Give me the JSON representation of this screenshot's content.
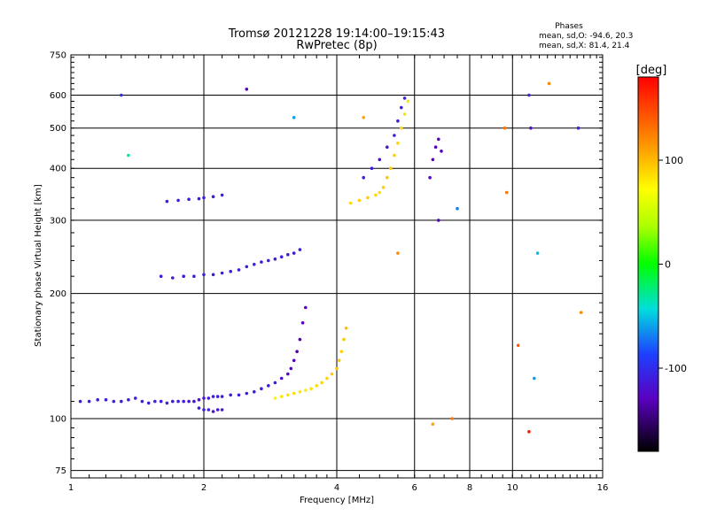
{
  "chart_data": {
    "type": "scatter",
    "title": "Tromsø 20121228 19:14:00–19:15:43",
    "subtitle": "RwPretec (8p)",
    "stats": {
      "heading": "Phases",
      "line1": "mean, sd,O: -94.6, 20.3",
      "line2": "mean, sd,X:  81.4, 21.4"
    },
    "xlabel": "Frequency [MHz]",
    "ylabel": "Stationary phase Virtual Height [km]",
    "x_scale": "log",
    "y_scale": "log",
    "xlim": [
      1,
      16
    ],
    "ylim": [
      72,
      750
    ],
    "x_ticks": [
      1,
      2,
      4,
      6,
      8,
      10,
      16
    ],
    "x_tick_labels": [
      "1",
      "2",
      "4",
      "6",
      "8",
      "10",
      "16"
    ],
    "y_ticks": [
      75,
      100,
      200,
      300,
      400,
      500,
      600,
      750
    ],
    "y_tick_labels": [
      "75",
      "100",
      "200",
      "300",
      "400",
      "500",
      "600",
      "750"
    ],
    "grid": true,
    "colorbar": {
      "label": "[deg]",
      "range": [
        -180,
        180
      ],
      "ticks": [
        100,
        0,
        -100
      ],
      "tick_labels": [
        "100",
        "0",
        "-100"
      ]
    },
    "series": [
      {
        "trace": "lower-O",
        "x": [
          1.05,
          1.1,
          1.15,
          1.2,
          1.25,
          1.3,
          1.35,
          1.4,
          1.45,
          1.5,
          1.55,
          1.6,
          1.65,
          1.7,
          1.75,
          1.8,
          1.85,
          1.9,
          1.95,
          2.0,
          2.05,
          2.1,
          2.15,
          2.2,
          2.3,
          2.4,
          2.5,
          2.6,
          2.7,
          2.8,
          2.9,
          3.0,
          3.1,
          3.15,
          3.2,
          3.25,
          3.3,
          3.35,
          3.4
        ],
        "y": [
          110,
          110,
          111,
          111,
          110,
          110,
          111,
          112,
          110,
          109,
          110,
          110,
          109,
          110,
          110,
          110,
          110,
          110,
          111,
          112,
          112,
          113,
          113,
          113,
          114,
          114,
          115,
          116,
          118,
          120,
          122,
          125,
          128,
          132,
          138,
          145,
          155,
          170,
          185
        ],
        "phase": [
          -115,
          -110,
          -112,
          -110,
          -108,
          -112,
          -110,
          -108,
          -110,
          -112,
          -108,
          -112,
          -110,
          -115,
          -112,
          -112,
          -118,
          -120,
          -120,
          -118,
          -115,
          -112,
          -115,
          -110,
          -110,
          -108,
          -110,
          -112,
          -110,
          -112,
          -115,
          -120,
          -125,
          -130,
          -132,
          -135,
          -132,
          -130,
          -128
        ]
      },
      {
        "trace": "lower-O-dip",
        "x": [
          1.95,
          2.0,
          2.05,
          2.1,
          2.15,
          2.2
        ],
        "y": [
          106,
          105,
          105,
          104,
          105,
          105
        ],
        "phase": [
          -110,
          -115,
          -112,
          -118,
          -115,
          -112
        ]
      },
      {
        "trace": "lower-X",
        "x": [
          2.9,
          3.0,
          3.1,
          3.2,
          3.3,
          3.4,
          3.5,
          3.6,
          3.7,
          3.8,
          3.9,
          4.0,
          4.05,
          4.1,
          4.15,
          4.2
        ],
        "y": [
          112,
          113,
          114,
          115,
          116,
          117,
          118,
          120,
          122,
          125,
          128,
          132,
          138,
          145,
          155,
          165
        ],
        "phase": [
          75,
          80,
          82,
          85,
          80,
          78,
          82,
          85,
          88,
          90,
          92,
          95,
          92,
          90,
          95,
          98
        ]
      },
      {
        "trace": "upper-O",
        "x": [
          1.6,
          1.7,
          1.8,
          1.9,
          2.0,
          2.1,
          2.2,
          2.3,
          2.4,
          2.5,
          2.6,
          2.7,
          2.8,
          2.9,
          3.0,
          3.1,
          3.2,
          3.3
        ],
        "y": [
          220,
          218,
          220,
          220,
          222,
          222,
          224,
          226,
          228,
          232,
          235,
          238,
          240,
          242,
          245,
          248,
          250,
          255
        ],
        "phase": [
          -112,
          -115,
          -115,
          -112,
          -110,
          -115,
          -112,
          -108,
          -110,
          -108,
          -105,
          -108,
          -110,
          -112,
          -110,
          -112,
          -115,
          -112
        ]
      },
      {
        "trace": "upper-O-2",
        "x": [
          1.65,
          1.75,
          1.85,
          1.95,
          2.0,
          2.1,
          2.2
        ],
        "y": [
          333,
          335,
          337,
          338,
          340,
          342,
          345
        ],
        "phase": [
          -110,
          -112,
          -110,
          -115,
          -112,
          -110,
          -108
        ]
      },
      {
        "trace": "F-region",
        "x": [
          4.3,
          4.5,
          4.7,
          4.9,
          5.0,
          5.1,
          5.2,
          5.3,
          5.4,
          5.5,
          5.6,
          5.7,
          5.8
        ],
        "y": [
          330,
          335,
          340,
          345,
          350,
          360,
          380,
          400,
          430,
          460,
          500,
          540,
          580
        ],
        "phase": [
          85,
          90,
          92,
          88,
          85,
          90,
          95,
          92,
          90,
          88,
          85,
          82,
          80
        ]
      },
      {
        "trace": "F-region-O",
        "x": [
          4.6,
          4.8,
          5.0,
          5.2,
          5.4,
          5.5,
          5.6,
          5.7
        ],
        "y": [
          380,
          400,
          420,
          450,
          480,
          520,
          560,
          590
        ],
        "phase": [
          -110,
          -115,
          -120,
          -118,
          -115,
          -112,
          -110,
          -112
        ]
      },
      {
        "trace": "F-region-O-2",
        "x": [
          6.5,
          6.6,
          6.7,
          6.8,
          6.9
        ],
        "y": [
          380,
          420,
          450,
          470,
          440
        ],
        "phase": [
          -125,
          -130,
          -128,
          -132,
          -130
        ]
      },
      {
        "trace": "isolated",
        "x": [
          1.3,
          1.35,
          2.5,
          3.2,
          4.6,
          5.5,
          6.6,
          7.3,
          9.6,
          9.7,
          10.9,
          11.0,
          11.4,
          12.1,
          14.1,
          14.3,
          6.8,
          7.5,
          10.3,
          10.9,
          11.2
        ],
        "y": [
          600,
          430,
          620,
          530,
          530,
          250,
          97,
          100,
          500,
          350,
          600,
          500,
          250,
          640,
          500,
          180,
          300,
          320,
          150,
          93,
          125
        ],
        "phase": [
          -100,
          -30,
          -130,
          -60,
          110,
          120,
          110,
          130,
          130,
          130,
          -110,
          -120,
          -50,
          120,
          -110,
          120,
          -130,
          -70,
          140,
          170,
          -60
        ]
      }
    ]
  }
}
